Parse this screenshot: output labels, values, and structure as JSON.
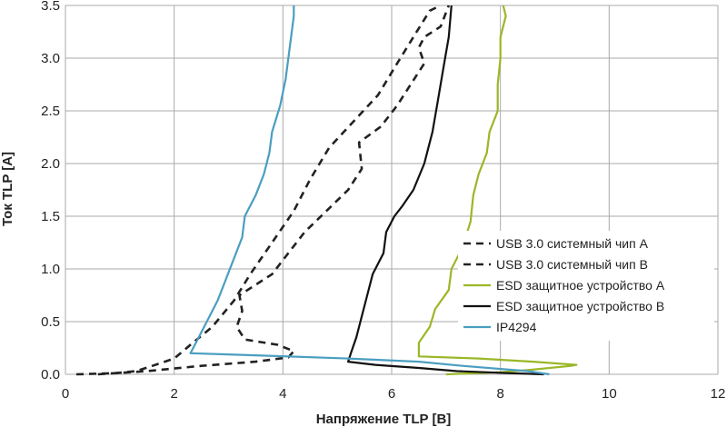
{
  "chart_data": {
    "type": "line",
    "xlabel": "Напряжение TLP [В]",
    "ylabel": "Ток TLP [А]",
    "xlim": [
      0,
      12
    ],
    "ylim": [
      0,
      3.5
    ],
    "x_ticks": [
      "0",
      "2",
      "4",
      "6",
      "8",
      "10",
      "12"
    ],
    "y_ticks": [
      "0.0",
      "0.5",
      "1.0",
      "1.5",
      "2.0",
      "2.5",
      "3.0",
      "3.5"
    ],
    "grid": true,
    "legend_position": "right",
    "series": [
      {
        "name": "USB 3.0 системный чип A",
        "color": "#222222",
        "dash": "dashed",
        "points": [
          [
            0.2,
            0.0
          ],
          [
            0.9,
            0.01
          ],
          [
            1.3,
            0.03
          ],
          [
            1.6,
            0.08
          ],
          [
            2.0,
            0.15
          ],
          [
            2.3,
            0.28
          ],
          [
            2.7,
            0.45
          ],
          [
            3.1,
            0.7
          ],
          [
            3.4,
            0.95
          ],
          [
            3.8,
            1.25
          ],
          [
            4.2,
            1.55
          ],
          [
            4.5,
            1.85
          ],
          [
            4.85,
            2.15
          ],
          [
            5.3,
            2.4
          ],
          [
            5.75,
            2.65
          ],
          [
            6.1,
            2.95
          ],
          [
            6.4,
            3.2
          ],
          [
            6.7,
            3.45
          ],
          [
            6.9,
            3.5
          ]
        ]
      },
      {
        "name": "USB 3.0 системный чип B",
        "color": "#222222",
        "dash": "dashed",
        "points": [
          [
            0.6,
            0.0
          ],
          [
            1.5,
            0.03
          ],
          [
            2.5,
            0.08
          ],
          [
            3.5,
            0.12
          ],
          [
            4.1,
            0.16
          ],
          [
            4.2,
            0.22
          ],
          [
            3.9,
            0.28
          ],
          [
            3.3,
            0.33
          ],
          [
            3.15,
            0.45
          ],
          [
            3.25,
            0.6
          ],
          [
            3.2,
            0.75
          ],
          [
            3.5,
            0.85
          ],
          [
            3.8,
            0.95
          ],
          [
            4.1,
            1.15
          ],
          [
            4.4,
            1.35
          ],
          [
            4.8,
            1.55
          ],
          [
            5.2,
            1.75
          ],
          [
            5.45,
            1.95
          ],
          [
            5.4,
            2.2
          ],
          [
            5.8,
            2.35
          ],
          [
            6.1,
            2.55
          ],
          [
            6.35,
            2.75
          ],
          [
            6.6,
            2.95
          ],
          [
            6.5,
            3.1
          ],
          [
            6.6,
            3.2
          ],
          [
            6.9,
            3.3
          ],
          [
            7.05,
            3.5
          ]
        ]
      },
      {
        "name": "ESD защитное устройство A",
        "color": "#9ab728",
        "dash": "solid",
        "points": [
          [
            7.0,
            0.0
          ],
          [
            8.0,
            0.02
          ],
          [
            8.5,
            0.04
          ],
          [
            9.3,
            0.08
          ],
          [
            9.4,
            0.09
          ],
          [
            8.6,
            0.12
          ],
          [
            7.6,
            0.15
          ],
          [
            6.5,
            0.17
          ],
          [
            6.5,
            0.3
          ],
          [
            6.7,
            0.45
          ],
          [
            6.8,
            0.62
          ],
          [
            7.05,
            0.8
          ],
          [
            7.1,
            1.0
          ],
          [
            7.3,
            1.2
          ],
          [
            7.45,
            1.45
          ],
          [
            7.5,
            1.7
          ],
          [
            7.6,
            1.9
          ],
          [
            7.75,
            2.1
          ],
          [
            7.8,
            2.3
          ],
          [
            7.95,
            2.5
          ],
          [
            7.95,
            2.75
          ],
          [
            8.0,
            3.0
          ],
          [
            8.0,
            3.2
          ],
          [
            8.1,
            3.4
          ],
          [
            8.05,
            3.5
          ]
        ]
      },
      {
        "name": "ESD защитное устройство B",
        "color": "#111111",
        "dash": "solid",
        "points": [
          [
            8.8,
            0.0
          ],
          [
            8.2,
            0.01
          ],
          [
            7.2,
            0.03
          ],
          [
            6.5,
            0.06
          ],
          [
            5.7,
            0.09
          ],
          [
            5.2,
            0.12
          ],
          [
            5.25,
            0.2
          ],
          [
            5.35,
            0.35
          ],
          [
            5.45,
            0.55
          ],
          [
            5.55,
            0.75
          ],
          [
            5.65,
            0.95
          ],
          [
            5.85,
            1.15
          ],
          [
            5.9,
            1.35
          ],
          [
            6.05,
            1.5
          ],
          [
            6.2,
            1.6
          ],
          [
            6.4,
            1.75
          ],
          [
            6.6,
            2.0
          ],
          [
            6.75,
            2.3
          ],
          [
            6.85,
            2.6
          ],
          [
            6.95,
            2.9
          ],
          [
            7.05,
            3.2
          ],
          [
            7.1,
            3.5
          ]
        ]
      },
      {
        "name": "IP4294",
        "color": "#4a9ec0",
        "dash": "solid",
        "points": [
          [
            8.9,
            0.0
          ],
          [
            8.5,
            0.03
          ],
          [
            7.3,
            0.08
          ],
          [
            6.5,
            0.12
          ],
          [
            5.2,
            0.15
          ],
          [
            3.5,
            0.18
          ],
          [
            2.3,
            0.2
          ],
          [
            2.4,
            0.3
          ],
          [
            2.6,
            0.5
          ],
          [
            2.8,
            0.7
          ],
          [
            2.95,
            0.9
          ],
          [
            3.1,
            1.1
          ],
          [
            3.25,
            1.3
          ],
          [
            3.3,
            1.5
          ],
          [
            3.5,
            1.7
          ],
          [
            3.65,
            1.9
          ],
          [
            3.75,
            2.1
          ],
          [
            3.8,
            2.3
          ],
          [
            3.95,
            2.55
          ],
          [
            4.05,
            2.8
          ],
          [
            4.1,
            3.0
          ],
          [
            4.15,
            3.2
          ],
          [
            4.2,
            3.4
          ],
          [
            4.2,
            3.5
          ]
        ]
      }
    ]
  }
}
